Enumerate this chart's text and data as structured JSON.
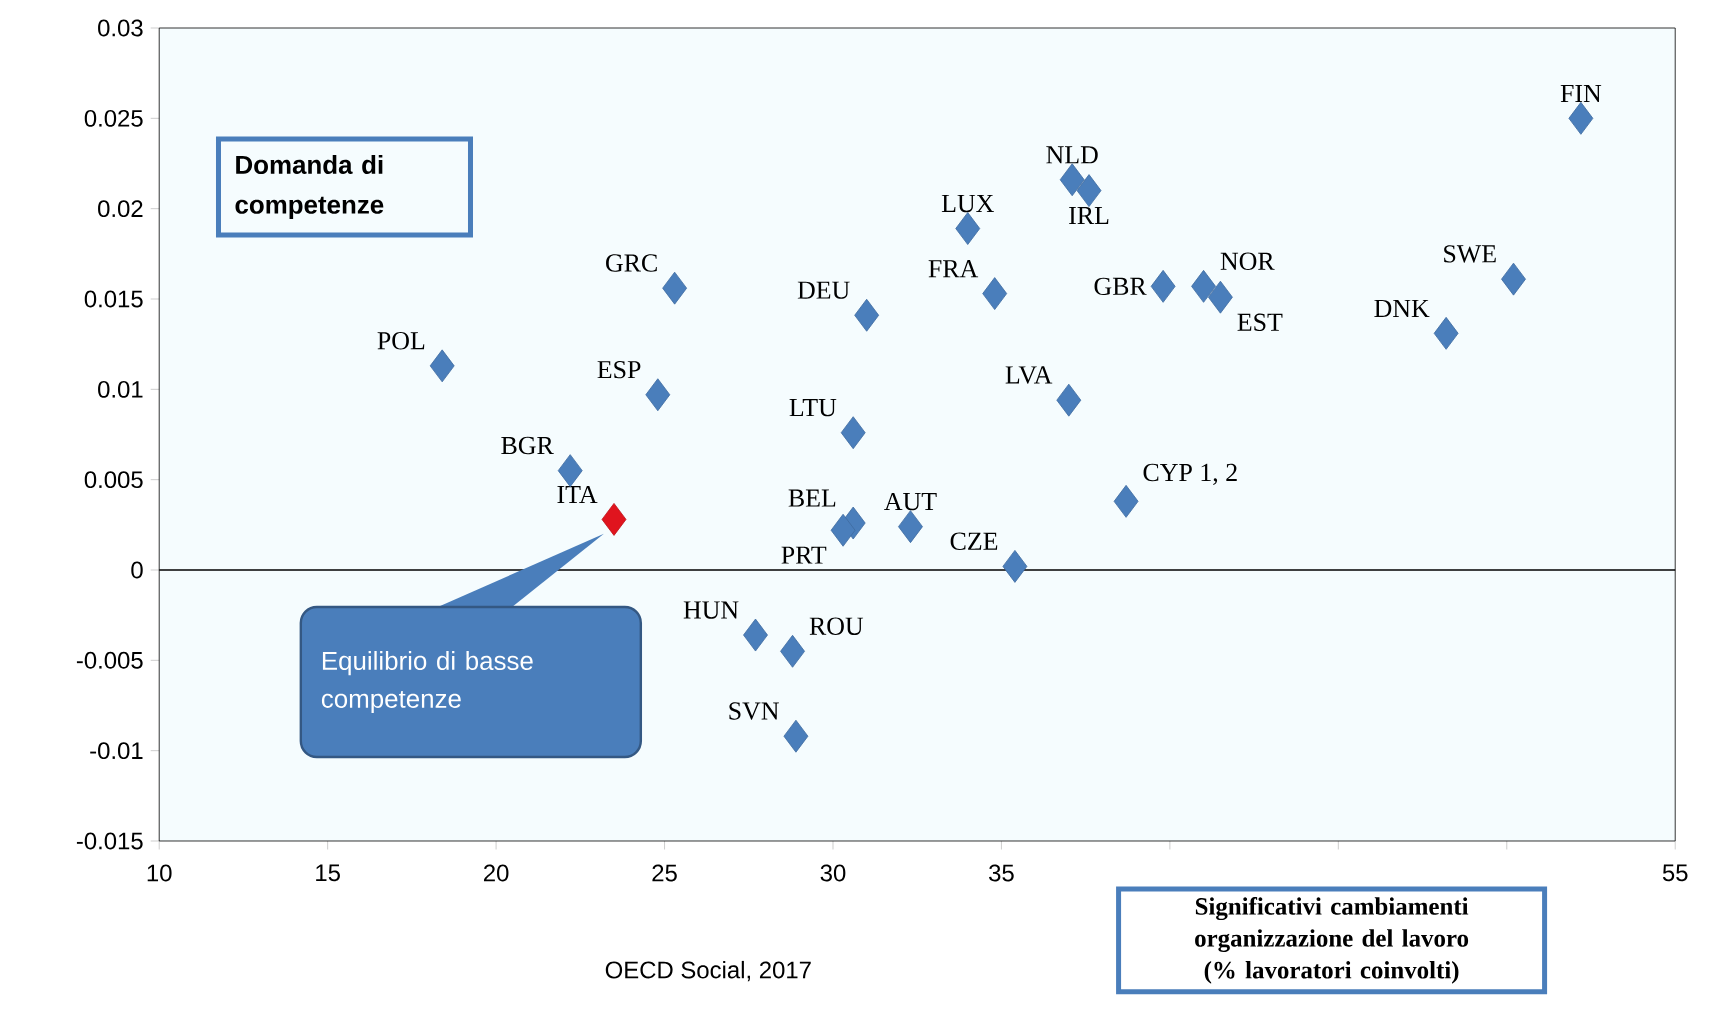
{
  "chart_data": {
    "type": "scatter",
    "xlabel": "Significativi cambiamenti organizzazione del lavoro (% lavoratori coinvolti)",
    "ylabel": "Domanda di competenze",
    "x": [
      52.2,
      37.1,
      37.6,
      34.0,
      25.3,
      34.8,
      31.0,
      39.8,
      41.0,
      41.5,
      50.2,
      48.2,
      18.4,
      24.8,
      37.0,
      30.6,
      22.2,
      38.7,
      23.5,
      30.6,
      30.3,
      32.3,
      35.4,
      27.7,
      28.8,
      28.9
    ],
    "values": [
      0.025,
      0.0216,
      0.021,
      0.0189,
      0.0156,
      0.0153,
      0.0141,
      0.0157,
      0.0157,
      0.0151,
      0.0161,
      0.0131,
      0.0113,
      0.0097,
      0.0094,
      0.0076,
      0.0055,
      0.0038,
      0.0028,
      0.0026,
      0.0022,
      0.0024,
      0.0002,
      -0.0036,
      -0.0045,
      -0.0092
    ],
    "value_labels": [
      "FIN",
      "NLD",
      "IRL",
      "LUX",
      "GRC",
      "FRA",
      "DEU",
      "GBR",
      "NOR",
      "EST",
      "SWE",
      "DNK",
      "POL",
      "ESP",
      "LVA",
      "LTU",
      "BGR",
      "CYP 1, 2",
      "ITA",
      "BEL",
      "PRT",
      "AUT",
      "CZE",
      "HUN",
      "ROU",
      "SVN"
    ],
    "colors": [
      "#4a7ebb",
      "#4a7ebb",
      "#4a7ebb",
      "#4a7ebb",
      "#4a7ebb",
      "#4a7ebb",
      "#4a7ebb",
      "#4a7ebb",
      "#4a7ebb",
      "#4a7ebb",
      "#4a7ebb",
      "#4a7ebb",
      "#4a7ebb",
      "#4a7ebb",
      "#4a7ebb",
      "#4a7ebb",
      "#4a7ebb",
      "#4a7ebb",
      "#e0141e",
      "#4a7ebb",
      "#4a7ebb",
      "#4a7ebb",
      "#4a7ebb",
      "#4a7ebb",
      "#4a7ebb",
      "#4a7ebb"
    ],
    "marker": "diamond",
    "xlim": [
      10,
      55
    ],
    "xticks": [
      10,
      15,
      20,
      25,
      30,
      35,
      {
        "value": 40,
        "label": null
      },
      {
        "value": 45,
        "label": null
      },
      {
        "value": 50,
        "label": null
      },
      55
    ],
    "ylim": [
      -0.015,
      0.03
    ],
    "yticks": [
      -0.015,
      -0.01,
      -0.005,
      0,
      0.005,
      0.01,
      0.015,
      0.02,
      0.025,
      0.03
    ],
    "ref_lines": [
      {
        "axis": "y",
        "value": 0,
        "color": "#000000"
      }
    ],
    "annotations": [
      "Equilibrio di basse competenze",
      "OECD Social, 2017"
    ]
  }
}
